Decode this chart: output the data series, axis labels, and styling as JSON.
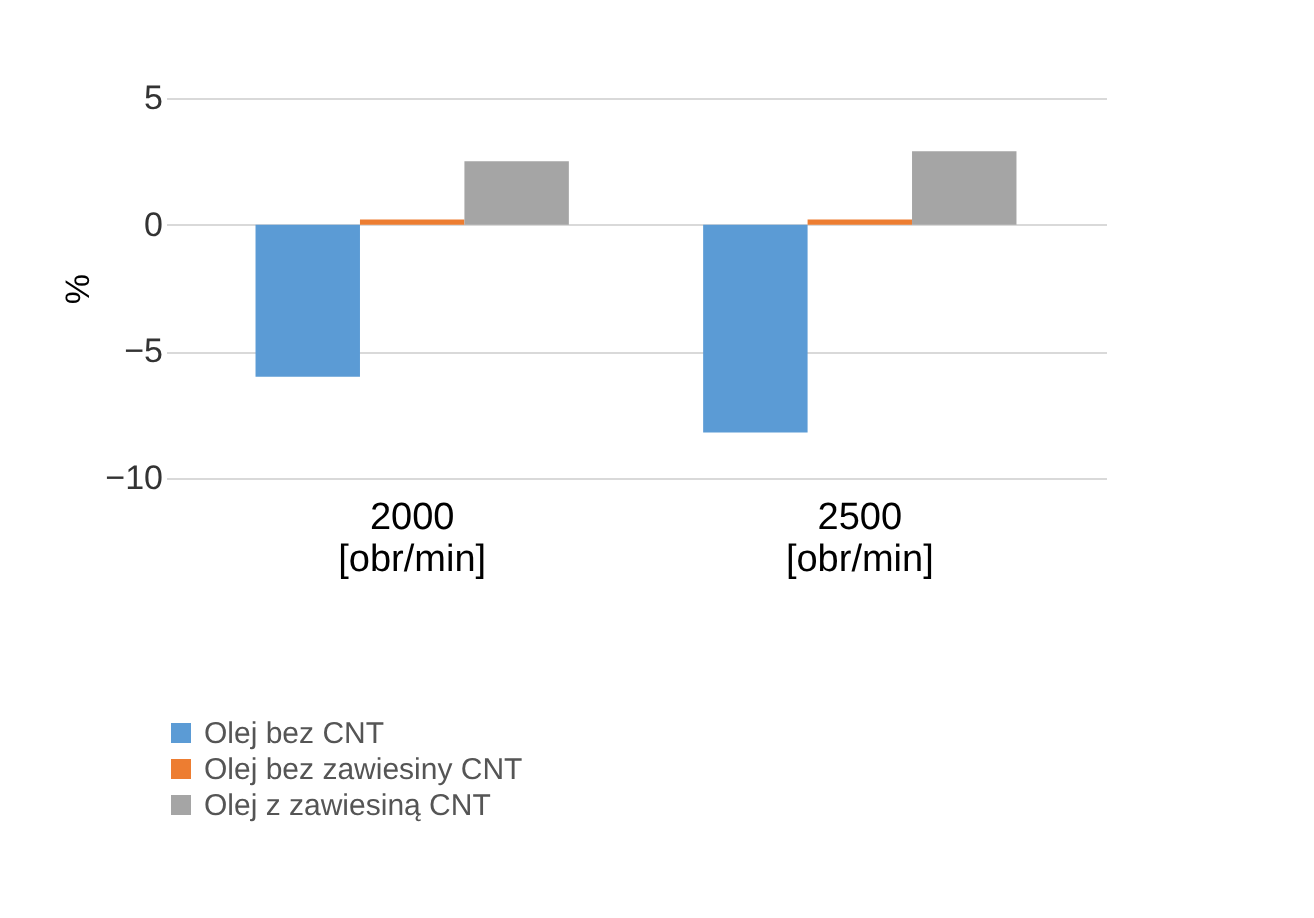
{
  "chart_data": {
    "type": "bar",
    "ylabel": "%",
    "categories": [
      "2000 [obr/min]",
      "2500 [obr/min]"
    ],
    "series": [
      {
        "name": "Olej bez CNT",
        "color": "#5b9bd5",
        "values": [
          -6.0,
          -8.2
        ]
      },
      {
        "name": "Olej bez zawiesiny CNT",
        "color": "#ed7d31",
        "values": [
          0.2,
          0.2
        ]
      },
      {
        "name": "Olej z zawiesiną CNT",
        "color": "#a5a5a5",
        "values": [
          2.5,
          2.9
        ]
      }
    ],
    "ylim": [
      -10,
      5
    ],
    "yticks": [
      -10,
      -5,
      0,
      5
    ],
    "grid": "y",
    "legend": "bottom"
  }
}
